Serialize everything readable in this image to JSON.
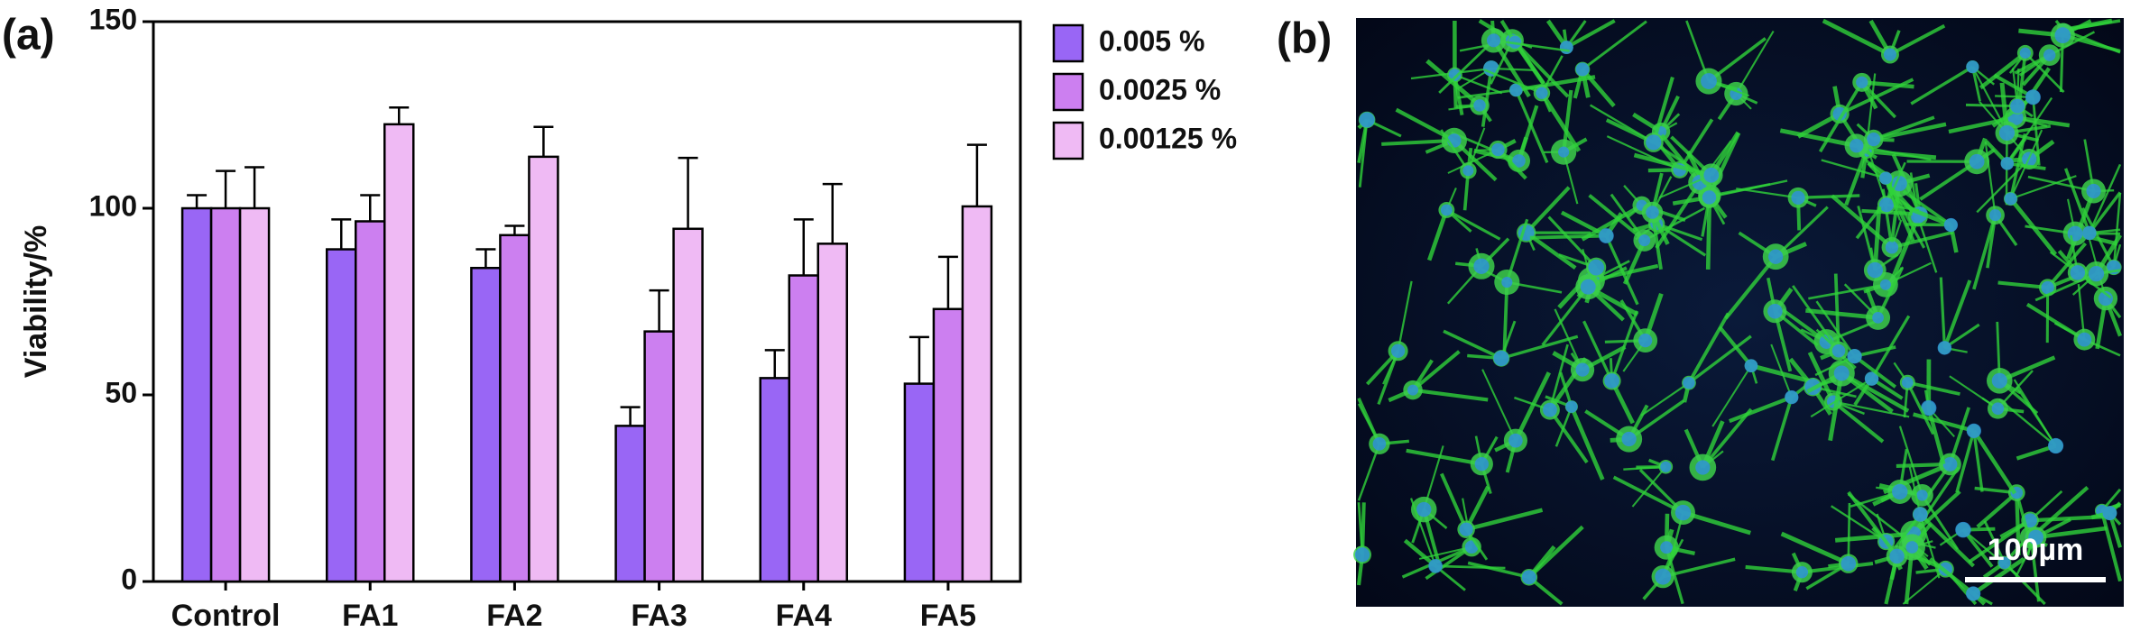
{
  "panels": {
    "a": "(a)",
    "b": "(b)"
  },
  "image": {
    "scale_bar": "100µm"
  },
  "chart_data": {
    "type": "bar",
    "y_label": "Viability/%",
    "categories": [
      "Control",
      "FA1",
      "FA2",
      "FA3",
      "FA4",
      "FA5"
    ],
    "series": [
      {
        "name": "0.005 %",
        "color": "#9966f5",
        "values": [
          100,
          89,
          84,
          41.7,
          54.5,
          53
        ],
        "errors": [
          3.5,
          8,
          5,
          5,
          7.5,
          12.5
        ]
      },
      {
        "name": "0.0025 %",
        "color": "#cc7ff0",
        "values": [
          100,
          96.5,
          92.8,
          67,
          82,
          73
        ],
        "errors": [
          10,
          7,
          2.5,
          11,
          15,
          14
        ]
      },
      {
        "name": "0.00125 %",
        "color": "#efbaf4",
        "values": [
          100,
          122.5,
          113.8,
          94.5,
          90.5,
          100.5
        ],
        "errors": [
          11,
          4.5,
          8,
          19,
          16,
          16.5
        ]
      }
    ],
    "ylim": [
      0,
      150
    ],
    "yticks": [
      0,
      50,
      100,
      150
    ],
    "grid": false,
    "legend": "right"
  }
}
